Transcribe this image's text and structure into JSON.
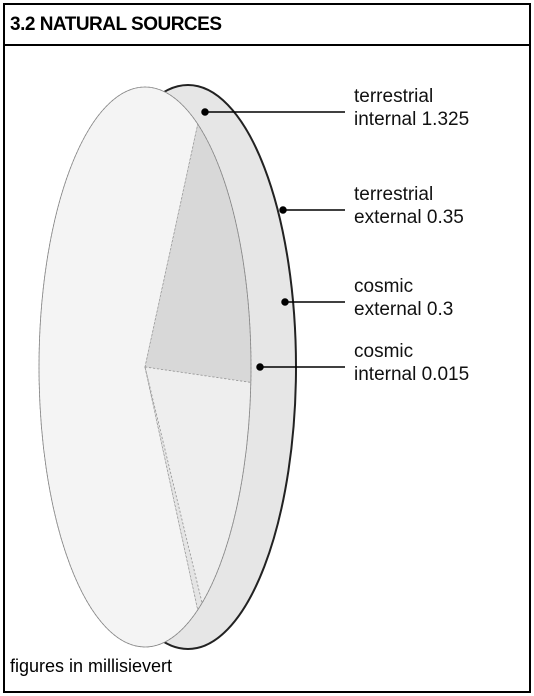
{
  "chart_data": {
    "type": "pie",
    "title": "3.2 NATURAL SOURCES",
    "categories": [
      "terrestrial\ninternal",
      "terrestrial\nexternal",
      "cosmic\nexternal",
      "cosmic\ninternal"
    ],
    "values": [
      1.325,
      0.35,
      0.3,
      0.015
    ],
    "colors": [
      "#f4f4f4",
      "#d8d8d8",
      "#eeeeee",
      "#e4e4e4"
    ],
    "footnote": "figures in millisievert"
  }
}
